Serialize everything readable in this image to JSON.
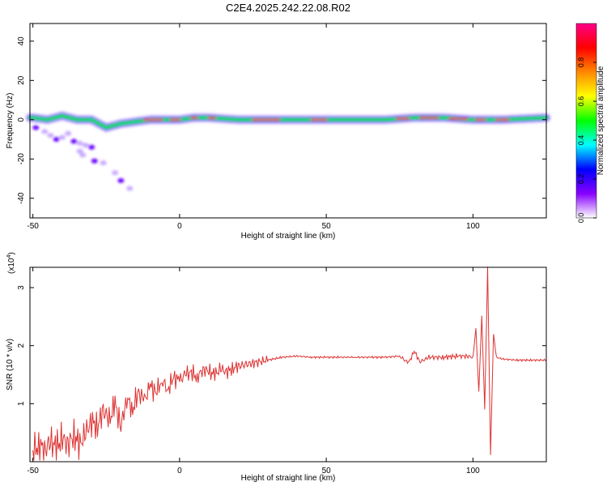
{
  "title": "C2E4.2025.242.22.08.R02",
  "chart_data": [
    {
      "type": "heatmap",
      "xlabel": "Height of straight line (km)",
      "ylabel": "Frequency (Hz)",
      "xlim": [
        -51,
        125
      ],
      "ylim": [
        -50,
        49
      ],
      "xticks": [
        "-50",
        "0",
        "50",
        "100"
      ],
      "xtick_values": [
        -50,
        0,
        50,
        100
      ],
      "yticks": [
        "40",
        "20",
        "0",
        "-20",
        "-40"
      ],
      "ytick_values": [
        40,
        20,
        0,
        -20,
        -40
      ],
      "colorbar": {
        "label": "Normalized spectral amplitude",
        "ticks": [
          "0.0",
          "0.2",
          "0.4",
          "0.6",
          "0.8"
        ],
        "tick_values": [
          0.0,
          0.2,
          0.4,
          0.6,
          0.8
        ],
        "range": [
          0,
          1
        ],
        "colors": [
          "#ffffff",
          "#8800ff",
          "#0000ff",
          "#00ffff",
          "#00ff00",
          "#ffff00",
          "#ff8800",
          "#ff0000",
          "#ff0088"
        ]
      },
      "ridge": {
        "x": [
          -50,
          -45,
          -40,
          -35,
          -30,
          -25,
          -20,
          -15,
          -10,
          -5,
          0,
          5,
          10,
          20,
          30,
          40,
          50,
          60,
          70,
          80,
          90,
          100,
          105,
          110,
          125
        ],
        "freq": [
          1,
          0,
          2,
          0,
          0,
          -4,
          -2,
          -1,
          0,
          0,
          0,
          1,
          1,
          0,
          0,
          0,
          0,
          0,
          0,
          1,
          1,
          0,
          0,
          0,
          1
        ]
      },
      "scatter_blobs": {
        "x": [
          -49,
          -46,
          -44,
          -42,
          -40,
          -38,
          -36,
          -34,
          -32,
          -30,
          -34,
          -33,
          -29,
          -26,
          -22,
          -20,
          -17
        ],
        "freq": [
          -4,
          -6,
          -8,
          -10,
          -9,
          -7,
          -11,
          -12,
          -13,
          -14,
          -16,
          -18,
          -21,
          -22,
          -27,
          -31,
          -35
        ]
      }
    },
    {
      "type": "line",
      "xlabel": "Height of straight line (km)",
      "ylabel": "SNR (10 * v/v)",
      "multiplier": "(x10",
      "multiplier_exp": "4",
      "multiplier_close": ")",
      "xlim": [
        -51,
        125
      ],
      "ylim": [
        0,
        3.35
      ],
      "xticks": [
        "-50",
        "0",
        "50",
        "100"
      ],
      "xtick_values": [
        -50,
        0,
        50,
        100
      ],
      "yticks": [
        "3",
        "2",
        "1"
      ],
      "ytick_values": [
        3,
        2,
        1
      ],
      "series": [
        {
          "color": "#dd3333",
          "x": [
            -50,
            -48,
            -46,
            -44,
            -42,
            -40,
            -38,
            -36,
            -34,
            -32,
            -30,
            -28,
            -26,
            -24,
            -22,
            -20,
            -18,
            -16,
            -14,
            -12,
            -10,
            -8,
            -6,
            -4,
            -2,
            0,
            2,
            4,
            6,
            8,
            10,
            12,
            14,
            16,
            18,
            20,
            25,
            30,
            35,
            40,
            45,
            50,
            55,
            60,
            65,
            70,
            75,
            78,
            80,
            82,
            85,
            90,
            95,
            98,
            100,
            101,
            102,
            103,
            104,
            105,
            106,
            107,
            108,
            110,
            115,
            120,
            125
          ],
          "y": [
            0.15,
            0.3,
            0.2,
            0.35,
            0.25,
            0.4,
            0.3,
            0.45,
            0.3,
            0.5,
            0.7,
            0.6,
            0.9,
            0.7,
            1.0,
            0.6,
            1.1,
            0.9,
            1.2,
            1.05,
            1.3,
            1.2,
            1.4,
            1.25,
            1.45,
            1.4,
            1.5,
            1.55,
            1.45,
            1.6,
            1.55,
            1.5,
            1.6,
            1.55,
            1.6,
            1.65,
            1.7,
            1.75,
            1.8,
            1.82,
            1.8,
            1.8,
            1.8,
            1.8,
            1.8,
            1.8,
            1.82,
            1.7,
            1.9,
            1.72,
            1.8,
            1.8,
            1.82,
            1.82,
            1.8,
            2.3,
            1.2,
            2.5,
            0.9,
            3.35,
            0.1,
            2.2,
            1.8,
            1.77,
            1.75,
            1.75,
            1.75
          ]
        }
      ]
    }
  ]
}
